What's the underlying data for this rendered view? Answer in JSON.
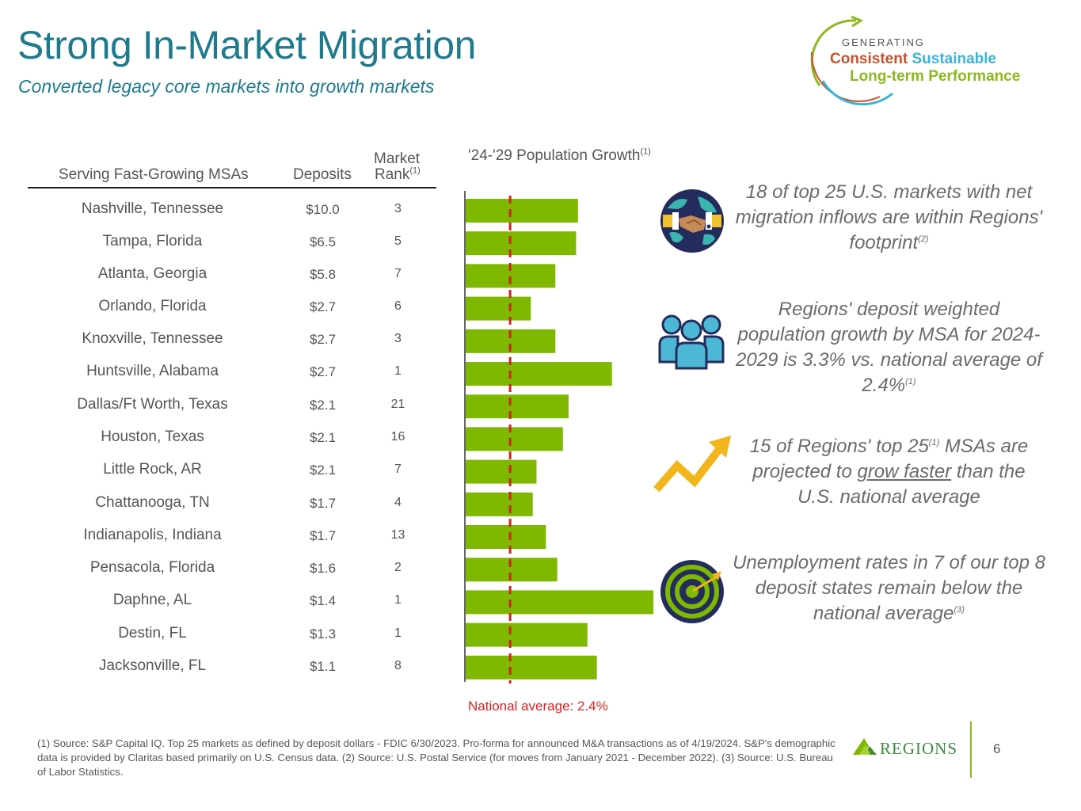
{
  "header": {
    "title": "Strong In-Market Migration",
    "subtitle": "Converted legacy core markets into growth markets"
  },
  "badge": {
    "line1": "GENERATING",
    "line2a": "Consistent",
    "line2b": "Sustainable",
    "line3": "Long-term Performance",
    "colors": {
      "orange": "#c8502a",
      "blue": "#3bb3d8",
      "green": "#8cb81e"
    }
  },
  "table": {
    "headers": {
      "msa": "Serving Fast-Growing MSAs",
      "deposits": "Deposits",
      "rank_line1": "Market",
      "rank_line2": "Rank",
      "rank_note": "(1)"
    },
    "rows": [
      {
        "msa": "Nashville, Tennessee",
        "deposits": "$10.0",
        "rank": "3"
      },
      {
        "msa": "Tampa, Florida",
        "deposits": "$6.5",
        "rank": "5"
      },
      {
        "msa": "Atlanta, Georgia",
        "deposits": "$5.8",
        "rank": "7"
      },
      {
        "msa": "Orlando, Florida",
        "deposits": "$2.7",
        "rank": "6"
      },
      {
        "msa": "Knoxville, Tennessee",
        "deposits": "$2.7",
        "rank": "3"
      },
      {
        "msa": "Huntsville, Alabama",
        "deposits": "$2.7",
        "rank": "1"
      },
      {
        "msa": "Dallas/Ft Worth, Texas",
        "deposits": "$2.1",
        "rank": "21"
      },
      {
        "msa": "Houston, Texas",
        "deposits": "$2.1",
        "rank": "16"
      },
      {
        "msa": "Little Rock, AR",
        "deposits": "$2.1",
        "rank": "7"
      },
      {
        "msa": "Chattanooga, TN",
        "deposits": "$1.7",
        "rank": "4"
      },
      {
        "msa": "Indianapolis, Indiana",
        "deposits": "$1.7",
        "rank": "13"
      },
      {
        "msa": "Pensacola, Florida",
        "deposits": "$1.6",
        "rank": "2"
      },
      {
        "msa": "Daphne, AL",
        "deposits": "$1.4",
        "rank": "1"
      },
      {
        "msa": "Destin, FL",
        "deposits": "$1.3",
        "rank": "1"
      },
      {
        "msa": "Jacksonville, FL",
        "deposits": "$1.1",
        "rank": "8"
      }
    ]
  },
  "chart_data": {
    "type": "bar",
    "orientation": "horizontal",
    "title": "'24-'29 Population Growth",
    "title_note": "(1)",
    "categories": [
      "Nashville, Tennessee",
      "Tampa, Florida",
      "Atlanta, Georgia",
      "Orlando, Florida",
      "Knoxville, Tennessee",
      "Huntsville, Alabama",
      "Dallas/Ft Worth, Texas",
      "Houston, Texas",
      "Little Rock, AR",
      "Chattanooga, TN",
      "Indianapolis, Indiana",
      "Pensacola, Florida",
      "Daphne, AL",
      "Destin, FL",
      "Jacksonville, FL"
    ],
    "values": [
      6.0,
      5.9,
      4.8,
      3.5,
      4.8,
      7.8,
      5.5,
      5.2,
      3.8,
      3.6,
      4.3,
      4.9,
      10.0,
      6.5,
      7.0
    ],
    "xlim": [
      0,
      10.5
    ],
    "reference_line": {
      "label": "National average: 2.4%",
      "value": 2.4,
      "style": "dashed",
      "color": "#d22222"
    },
    "bar_color": "#7fb800",
    "xlabel": "",
    "ylabel": ""
  },
  "callouts": [
    {
      "text": "18 of top 25 U.S. markets with net migration inflows are within Regions' footprint",
      "note": "(2)",
      "icon": "handshake-globe-icon"
    },
    {
      "text": "Regions' deposit weighted population growth by MSA for 2024-2029 is 3.3% vs. national average of 2.4%",
      "note": "(1)",
      "icon": "people-group-icon"
    },
    {
      "pre": "15 of Regions' top 25",
      "note": "(1)",
      "mid": " MSAs are projected to ",
      "underline": "grow faster",
      "post": " than the U.S. national average",
      "icon": "trend-up-arrow-icon"
    },
    {
      "text": "Unemployment rates in 7 of our top 8 deposit states remain below the national average",
      "note": "(3)",
      "icon": "target-icon"
    }
  ],
  "footer": {
    "footnotes": "(1) Source: S&P Capital IQ. Top 25 markets as defined by deposit dollars - FDIC 6/30/2023. Pro-forma for announced M&A transactions as of 4/19/2024. S&P's demographic data is provided by Claritas based primarily on U.S. Census data. (2) Source:  U.S. Postal Service (for moves from January 2021 - December 2022). (3) Source: U.S. Bureau of Labor Statistics.",
    "logo_text": "REGIONS",
    "page_number": "6"
  }
}
